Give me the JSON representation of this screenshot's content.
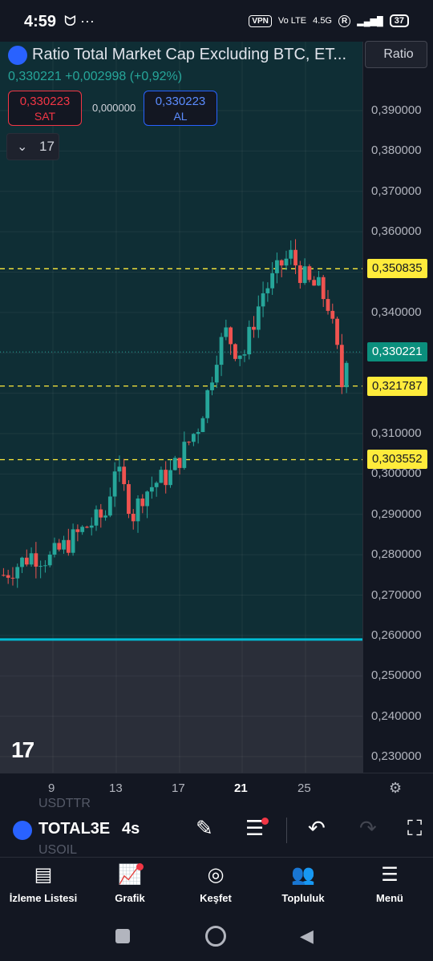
{
  "status_bar": {
    "time": "4:59",
    "left_icons": "ᗢ ···",
    "vpn": "VPN",
    "network": "4.5G",
    "volte": "Vo LTE",
    "r_badge": "R",
    "battery": "37"
  },
  "header": {
    "symbol_title": "Ratio Total Market Cap Excluding BTC, ET...",
    "price_change": "0,330221 +0,002998 (+0,92%)",
    "ratio_button": "Ratio"
  },
  "trade": {
    "sell_price": "0,330223",
    "sell_label": "SAT",
    "spread": "0,000000",
    "buy_price": "0,330223",
    "buy_label": "AL"
  },
  "collapse": {
    "chevron": "⌄",
    "count": "17"
  },
  "tv_logo": "17",
  "price_scale": {
    "labels": [
      "0,390000",
      "0,380000",
      "0,370000",
      "0,360000",
      "0,340000",
      "0,310000",
      "0,300000",
      "0,290000",
      "0,280000",
      "0,270000",
      "0,260000",
      "0,250000",
      "0,240000",
      "0,230000"
    ],
    "badges": {
      "level_high": "0,350835",
      "current": "0,330221",
      "level_mid": "0,321787",
      "level_low": "0,303552"
    }
  },
  "time_axis": {
    "labels": [
      "9",
      "13",
      "17",
      "21",
      "25"
    ]
  },
  "toolbar": {
    "symbol": "TOTAL3E",
    "ghost_above": "USDTTR",
    "ghost_below": "USOIL",
    "interval": "4s"
  },
  "bottom_nav": {
    "items": [
      {
        "label": "İzleme Listesi",
        "icon": "watchlist-icon"
      },
      {
        "label": "Grafik",
        "icon": "chart-icon"
      },
      {
        "label": "Keşfet",
        "icon": "compass-icon"
      },
      {
        "label": "Topluluk",
        "icon": "community-icon"
      },
      {
        "label": "Menü",
        "icon": "menu-icon"
      }
    ]
  },
  "colors": {
    "up": "#26a69a",
    "down": "#ef5350",
    "level_line": "#ffeb3b",
    "baseline": "#00bcd4",
    "bg_chart": "#0f2e35"
  },
  "chart_data": {
    "type": "candlestick",
    "symbol": "Ratio Total Market Cap Excluding BTC, ET...",
    "interval": "4s",
    "x_tick_labels": [
      "9",
      "13",
      "17",
      "21",
      "25"
    ],
    "ylim": [
      0.225,
      0.4
    ],
    "horizontal_levels": [
      0.350835,
      0.321787,
      0.303552
    ],
    "baseline_level": 0.259,
    "last_price": 0.330221,
    "approx_path": [
      [
        0,
        0.275
      ],
      [
        6,
        0.28
      ],
      [
        10,
        0.279
      ],
      [
        14,
        0.283
      ],
      [
        18,
        0.287
      ],
      [
        22,
        0.29
      ],
      [
        24,
        0.302
      ],
      [
        26,
        0.296
      ],
      [
        28,
        0.29
      ],
      [
        30,
        0.295
      ],
      [
        33,
        0.298
      ],
      [
        36,
        0.3
      ],
      [
        38,
        0.304
      ],
      [
        40,
        0.308
      ],
      [
        42,
        0.312
      ],
      [
        44,
        0.32
      ],
      [
        46,
        0.33
      ],
      [
        48,
        0.335
      ],
      [
        50,
        0.331
      ],
      [
        52,
        0.33
      ],
      [
        54,
        0.338
      ],
      [
        56,
        0.345
      ],
      [
        58,
        0.348
      ],
      [
        60,
        0.352
      ],
      [
        62,
        0.354
      ],
      [
        64,
        0.35
      ],
      [
        66,
        0.347
      ],
      [
        68,
        0.346
      ],
      [
        70,
        0.342
      ],
      [
        72,
        0.33
      ],
      [
        73,
        0.322
      ],
      [
        74,
        0.33
      ]
    ]
  }
}
